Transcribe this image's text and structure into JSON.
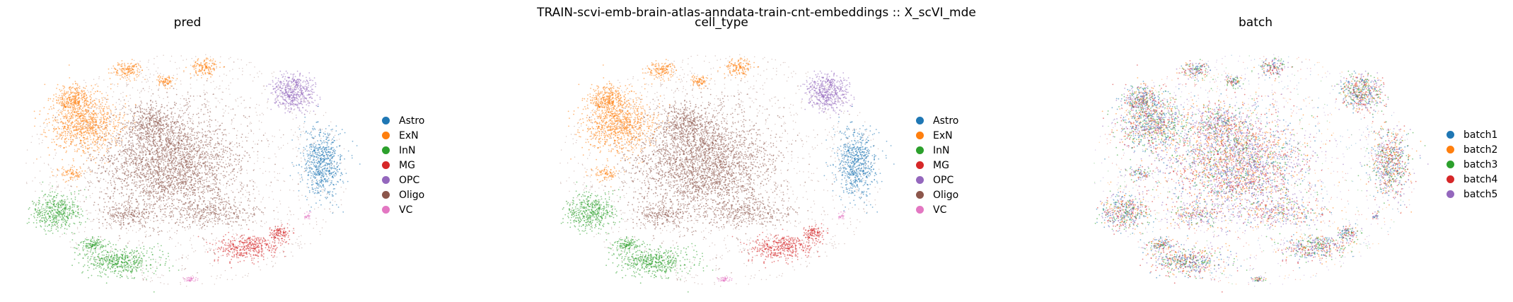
{
  "suptitle": "TRAIN-scvi-emb-brain-atlas-anndata-train-cnt-embeddings :: X_scVI_mde",
  "chart_data": [
    {
      "type": "scatter",
      "title": "pred",
      "legend_position": "right",
      "legend": [
        {
          "label": "Astro",
          "color": "#1f77b4"
        },
        {
          "label": "ExN",
          "color": "#ff7f0e"
        },
        {
          "label": "InN",
          "color": "#2ca02c"
        },
        {
          "label": "MG",
          "color": "#d62728"
        },
        {
          "label": "OPC",
          "color": "#9467bd"
        },
        {
          "label": "Oligo",
          "color": "#8c564b"
        },
        {
          "label": "VC",
          "color": "#e377c2"
        }
      ]
    },
    {
      "type": "scatter",
      "title": "cell_type",
      "legend_position": "right",
      "legend": [
        {
          "label": "Astro",
          "color": "#1f77b4"
        },
        {
          "label": "ExN",
          "color": "#ff7f0e"
        },
        {
          "label": "InN",
          "color": "#2ca02c"
        },
        {
          "label": "MG",
          "color": "#d62728"
        },
        {
          "label": "OPC",
          "color": "#9467bd"
        },
        {
          "label": "Oligo",
          "color": "#8c564b"
        },
        {
          "label": "VC",
          "color": "#e377c2"
        }
      ]
    },
    {
      "type": "scatter",
      "title": "batch",
      "legend_position": "right",
      "legend": [
        {
          "label": "batch1",
          "color": "#1f77b4"
        },
        {
          "label": "batch2",
          "color": "#ff7f0e"
        },
        {
          "label": "batch3",
          "color": "#2ca02c"
        },
        {
          "label": "batch4",
          "color": "#d62728"
        },
        {
          "label": "batch5",
          "color": "#9467bd"
        }
      ]
    }
  ]
}
